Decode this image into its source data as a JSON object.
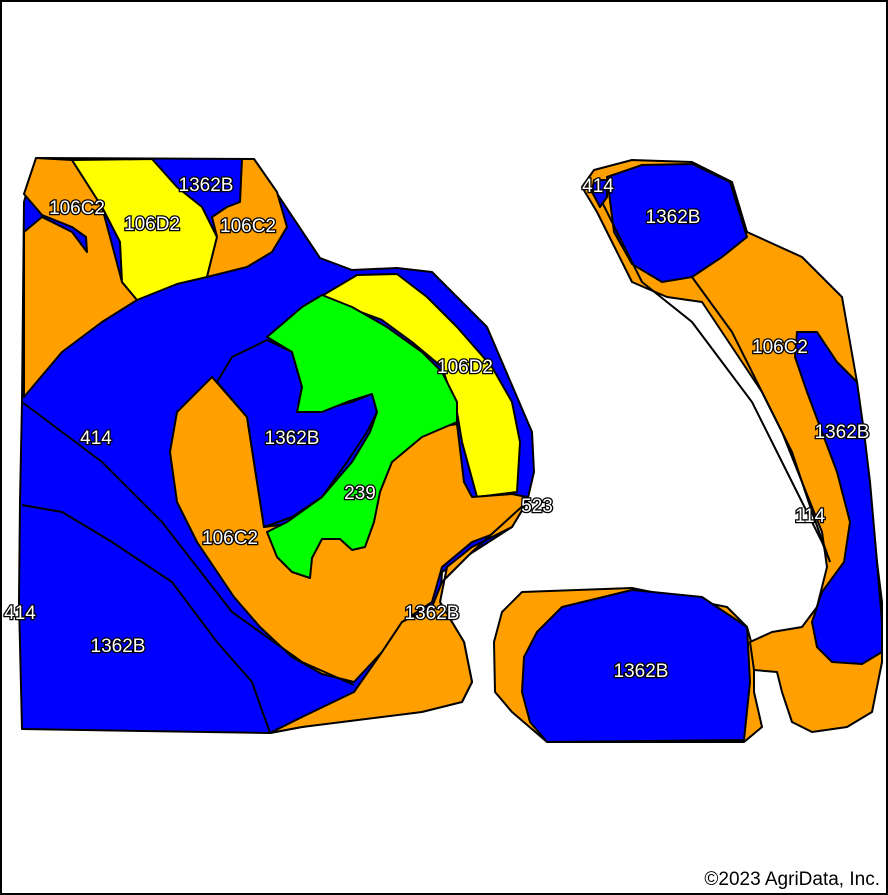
{
  "colors": {
    "blue": "#0000ff",
    "orange": "#ff9f00",
    "yellow": "#ffff00",
    "green": "#00ff00"
  },
  "labels": {
    "l_106c2_a": "106C2",
    "l_106d2_a": "106D2",
    "l_1362b_a": "1362B",
    "l_106c2_b": "106C2",
    "l_414_a": "414",
    "l_1362b_b": "1362B",
    "l_106d2_b": "106D2",
    "l_239": "239",
    "l_106c2_c": "106C2",
    "l_523": "523",
    "l_1362b_c": "1362B",
    "l_414_b": "414",
    "l_1362b_d": "1362B",
    "l_414_c": "414",
    "l_1362b_e": "1362B",
    "l_106c2_d": "106C2",
    "l_1362b_f": "1362B",
    "l_114": "114",
    "l_1362b_g": "1362B"
  },
  "copyright": "©2023 AgriData, Inc."
}
